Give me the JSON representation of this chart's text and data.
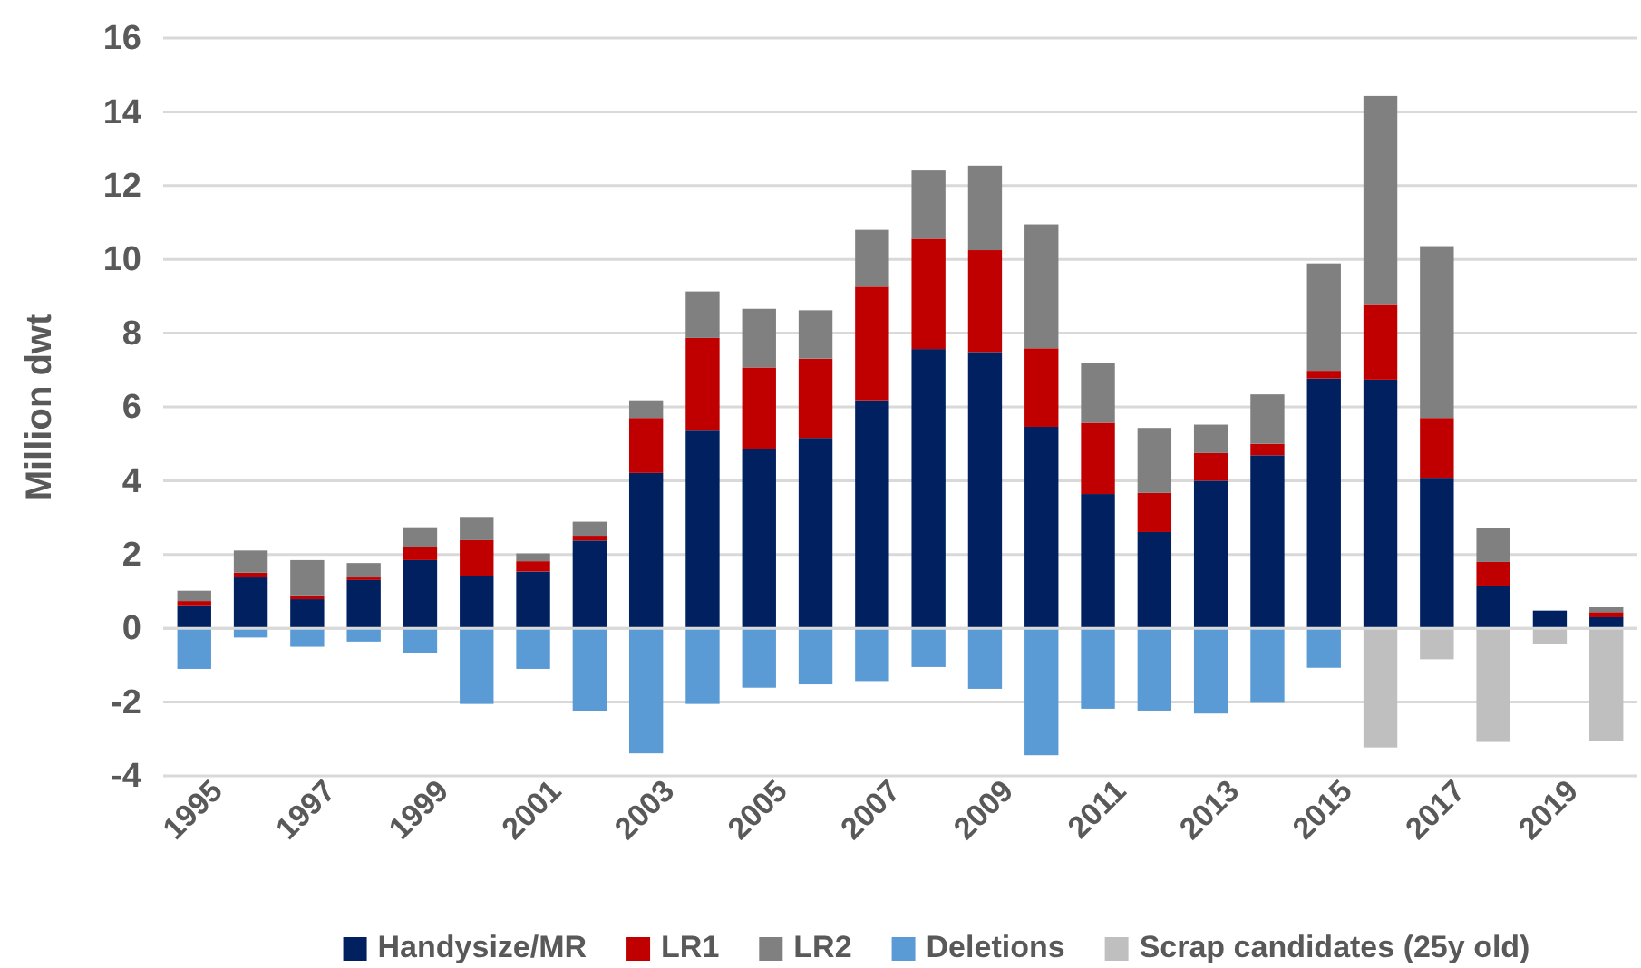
{
  "chart_data": {
    "type": "bar",
    "stacked": true,
    "ylabel": "Million dwt",
    "categories": [
      "1995",
      null,
      "1997",
      null,
      "1999",
      null,
      "2001",
      null,
      "2003",
      null,
      "2005",
      null,
      "2007",
      null,
      "2009",
      null,
      "2011",
      null,
      "2013",
      null,
      "2015",
      null,
      "2017",
      null,
      "2019",
      null
    ],
    "series": [
      {
        "name": "Handysize/MR",
        "color": "#002060",
        "values": [
          0.6,
          1.38,
          0.79,
          1.31,
          1.85,
          1.41,
          1.54,
          2.38,
          4.21,
          5.38,
          4.87,
          5.16,
          6.18,
          7.57,
          7.49,
          5.46,
          3.64,
          2.61,
          4.0,
          4.69,
          6.77,
          6.74,
          4.08,
          1.16,
          0.48,
          0.3
        ]
      },
      {
        "name": "LR1",
        "color": "#c00000",
        "values": [
          0.14,
          0.13,
          0.08,
          0.07,
          0.35,
          0.98,
          0.28,
          0.13,
          1.49,
          2.49,
          2.2,
          2.15,
          3.08,
          2.99,
          2.76,
          2.13,
          1.93,
          1.06,
          0.75,
          0.31,
          0.21,
          2.05,
          1.62,
          0.64,
          0,
          0.14
        ]
      },
      {
        "name": "LR2",
        "color": "#808080",
        "values": [
          0.28,
          0.6,
          0.98,
          0.39,
          0.54,
          0.63,
          0.21,
          0.38,
          0.48,
          1.26,
          1.59,
          1.31,
          1.54,
          1.85,
          2.29,
          3.36,
          1.63,
          1.76,
          0.77,
          1.34,
          2.91,
          5.64,
          4.66,
          0.92,
          0,
          0.13
        ]
      },
      {
        "name": "Deletions",
        "color": "#5b9bd5",
        "values": [
          -1.1,
          -0.25,
          -0.5,
          -0.36,
          -0.66,
          -2.05,
          -1.1,
          -2.25,
          -3.39,
          -2.05,
          -1.61,
          -1.52,
          -1.43,
          -1.05,
          -1.64,
          -3.44,
          -2.18,
          -2.23,
          -2.31,
          -2.02,
          -1.07,
          null,
          null,
          null,
          null,
          null
        ]
      },
      {
        "name": "Scrap candidates (25y old)",
        "color": "#bfbfbf",
        "values": [
          null,
          null,
          null,
          null,
          null,
          null,
          null,
          null,
          null,
          null,
          null,
          null,
          null,
          null,
          null,
          null,
          null,
          null,
          null,
          null,
          null,
          -3.23,
          -0.84,
          -3.08,
          -0.43,
          -3.05
        ]
      }
    ],
    "ylim": [
      -4,
      16
    ],
    "yticks": [
      -4,
      -2,
      0,
      2,
      4,
      6,
      8,
      10,
      12,
      14,
      16
    ],
    "grid": "y",
    "legend": "bottom"
  }
}
